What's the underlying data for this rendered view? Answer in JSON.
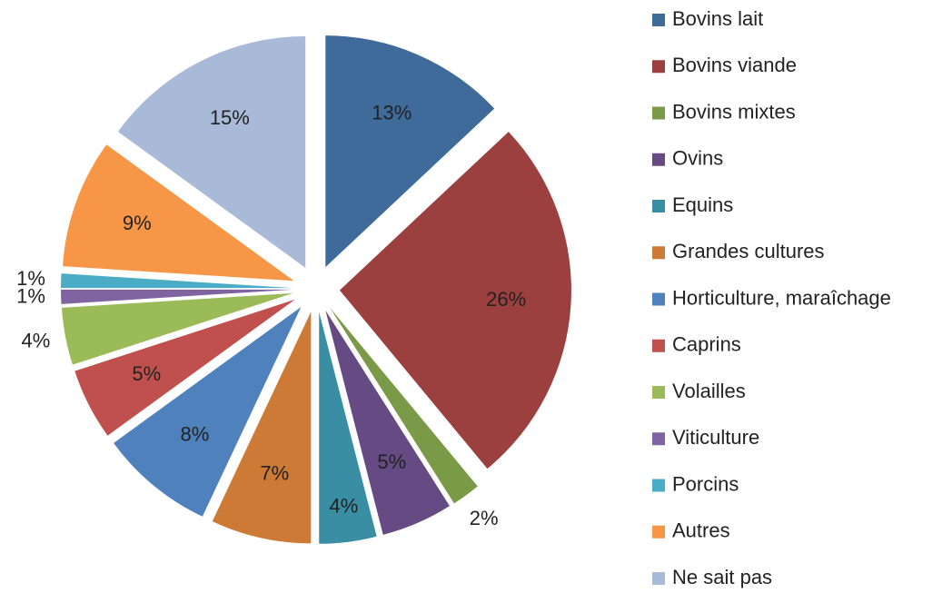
{
  "chart_data": {
    "type": "pie",
    "categories": [
      "Bovins lait",
      "Bovins viande",
      "Bovins mixtes",
      "Ovins",
      "Equins",
      "Grandes cultures",
      "Horticulture, maraîchage",
      "Caprins",
      "Volailles",
      "Viticulture",
      "Porcins",
      "Autres",
      "Ne sait pas"
    ],
    "values": [
      13,
      26,
      2,
      5,
      4,
      7,
      8,
      5,
      4,
      1,
      1,
      9,
      15
    ],
    "value_labels": [
      "13%",
      "26%",
      "2%",
      "5%",
      "4%",
      "7%",
      "8%",
      "5%",
      "4%",
      "1%",
      "1%",
      "9%",
      "15%"
    ],
    "colors": [
      "#3f6b9a",
      "#9c3f3f",
      "#7a9a48",
      "#654a84",
      "#3a8ea3",
      "#cc7a36",
      "#4f81bd",
      "#c0504d",
      "#9bbb59",
      "#8064a2",
      "#4bacc6",
      "#f79646",
      "#a9bad8"
    ],
    "legend": "right"
  }
}
